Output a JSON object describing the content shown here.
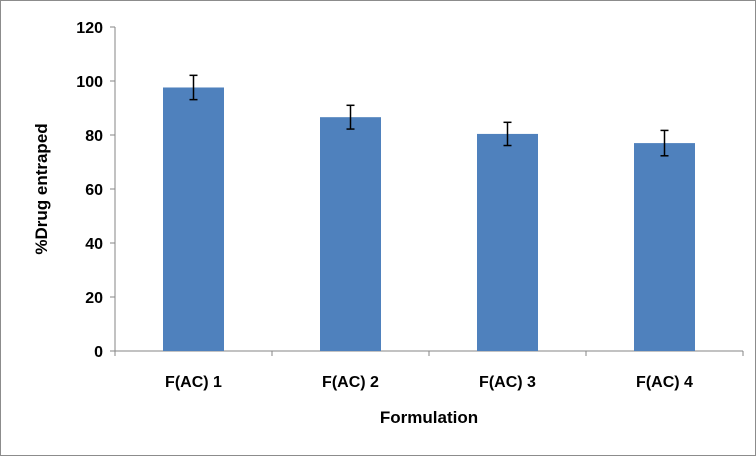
{
  "chart_data": {
    "type": "bar",
    "title": "",
    "xlabel": "Formulation",
    "ylabel": "%Drug entraped",
    "categories": [
      "F(AC) 1",
      "F(AC) 2",
      "F(AC) 3",
      "F(AC) 4"
    ],
    "values": [
      97.6,
      86.6,
      80.4,
      77.0
    ],
    "error": [
      4.5,
      4.4,
      4.3,
      4.7
    ],
    "ylim": [
      0,
      120
    ],
    "yticks": [
      0,
      20,
      40,
      60,
      80,
      100,
      120
    ],
    "ytick_labels": [
      "0",
      "20",
      "40",
      "60",
      "80",
      "100",
      "120"
    ],
    "grid": false,
    "legend": "none",
    "bar_color": "#4f81bd"
  }
}
